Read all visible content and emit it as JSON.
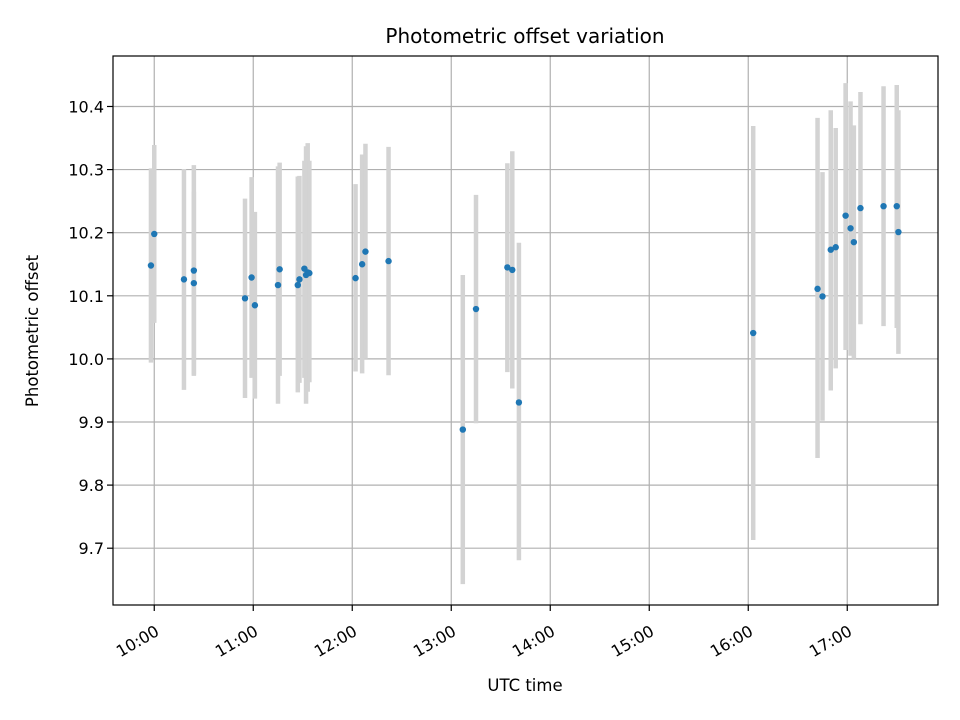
{
  "chart_data": {
    "type": "scatter",
    "title": "Photometric offset variation",
    "xlabel": "UTC time",
    "ylabel": "Photometric offset",
    "x_axis_type": "time",
    "xlim": [
      "09:35",
      "17:55"
    ],
    "ylim": [
      9.61,
      10.48
    ],
    "x_ticks": [
      "10:00",
      "11:00",
      "12:00",
      "13:00",
      "14:00",
      "15:00",
      "16:00",
      "17:00"
    ],
    "y_ticks": [
      9.7,
      9.8,
      9.9,
      10.0,
      10.1,
      10.2,
      10.3,
      10.4
    ],
    "grid": true,
    "legend": "none",
    "colors": {
      "points": "#1f77b4",
      "errorbars": "#d3d3d3",
      "grid": "#b0b0b0"
    },
    "series": [
      {
        "points": [
          {
            "x": "09:58",
            "y": 10.148,
            "ylo": 9.994,
            "yhi": 10.302
          },
          {
            "x": "10:00",
            "y": 10.198,
            "ylo": 10.057,
            "yhi": 10.339
          },
          {
            "x": "10:18",
            "y": 10.126,
            "ylo": 9.951,
            "yhi": 10.301
          },
          {
            "x": "10:24",
            "y": 10.12,
            "ylo": 9.975,
            "yhi": 10.265
          },
          {
            "x": "10:24",
            "y": 10.14,
            "ylo": 9.973,
            "yhi": 10.307
          },
          {
            "x": "10:55",
            "y": 10.096,
            "ylo": 9.938,
            "yhi": 10.254
          },
          {
            "x": "10:59",
            "y": 10.129,
            "ylo": 9.97,
            "yhi": 10.288
          },
          {
            "x": "11:01",
            "y": 10.085,
            "ylo": 9.937,
            "yhi": 10.233
          },
          {
            "x": "11:15",
            "y": 10.117,
            "ylo": 9.929,
            "yhi": 10.305
          },
          {
            "x": "11:16",
            "y": 10.142,
            "ylo": 9.973,
            "yhi": 10.311
          },
          {
            "x": "11:27",
            "y": 10.117,
            "ylo": 9.947,
            "yhi": 10.289
          },
          {
            "x": "11:28",
            "y": 10.126,
            "ylo": 9.962,
            "yhi": 10.29
          },
          {
            "x": "11:31",
            "y": 10.143,
            "ylo": 9.97,
            "yhi": 10.314
          },
          {
            "x": "11:32",
            "y": 10.133,
            "ylo": 9.929,
            "yhi": 10.337
          },
          {
            "x": "11:33",
            "y": 10.137,
            "ylo": 9.948,
            "yhi": 10.342
          },
          {
            "x": "11:34",
            "y": 10.136,
            "ylo": 9.963,
            "yhi": 10.314
          },
          {
            "x": "12:02",
            "y": 10.128,
            "ylo": 9.98,
            "yhi": 10.277
          },
          {
            "x": "12:06",
            "y": 10.15,
            "ylo": 9.977,
            "yhi": 10.324
          },
          {
            "x": "12:08",
            "y": 10.17,
            "ylo": 10.0,
            "yhi": 10.341
          },
          {
            "x": "12:22",
            "y": 10.155,
            "ylo": 9.974,
            "yhi": 10.336
          },
          {
            "x": "13:07",
            "y": 9.888,
            "ylo": 9.643,
            "yhi": 10.133
          },
          {
            "x": "13:15",
            "y": 10.079,
            "ylo": 9.898,
            "yhi": 10.26
          },
          {
            "x": "13:34",
            "y": 10.145,
            "ylo": 9.979,
            "yhi": 10.31
          },
          {
            "x": "13:37",
            "y": 10.141,
            "ylo": 9.953,
            "yhi": 10.329
          },
          {
            "x": "13:41",
            "y": 9.931,
            "ylo": 9.681,
            "yhi": 10.184
          },
          {
            "x": "16:03",
            "y": 10.041,
            "ylo": 9.713,
            "yhi": 10.369
          },
          {
            "x": "16:42",
            "y": 10.111,
            "ylo": 9.843,
            "yhi": 10.382
          },
          {
            "x": "16:45",
            "y": 10.099,
            "ylo": 9.902,
            "yhi": 10.296
          },
          {
            "x": "16:50",
            "y": 10.173,
            "ylo": 9.95,
            "yhi": 10.394
          },
          {
            "x": "16:53",
            "y": 10.177,
            "ylo": 9.985,
            "yhi": 10.366
          },
          {
            "x": "16:59",
            "y": 10.227,
            "ylo": 10.014,
            "yhi": 10.437
          },
          {
            "x": "17:02",
            "y": 10.207,
            "ylo": 10.005,
            "yhi": 10.408
          },
          {
            "x": "17:04",
            "y": 10.185,
            "ylo": 10.0,
            "yhi": 10.37
          },
          {
            "x": "17:08",
            "y": 10.239,
            "ylo": 10.055,
            "yhi": 10.423
          },
          {
            "x": "17:22",
            "y": 10.242,
            "ylo": 10.052,
            "yhi": 10.432
          },
          {
            "x": "17:30",
            "y": 10.242,
            "ylo": 10.049,
            "yhi": 10.434
          },
          {
            "x": "17:31",
            "y": 10.201,
            "ylo": 10.008,
            "yhi": 10.394
          }
        ]
      }
    ]
  }
}
